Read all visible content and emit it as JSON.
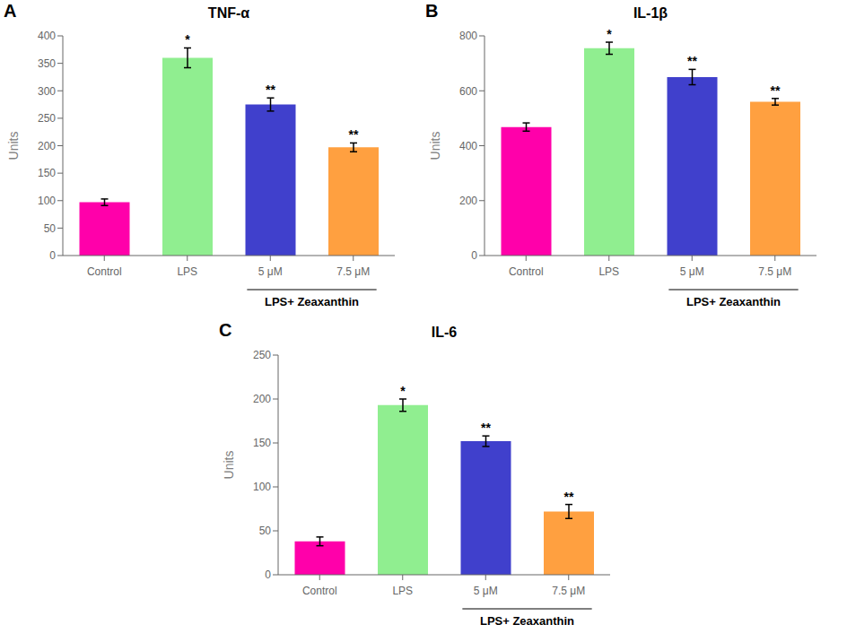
{
  "chart_data": [
    {
      "type": "bar",
      "label": "A",
      "title": "TNF-α",
      "categories": [
        "Control",
        "LPS",
        "5 μM",
        "7.5 μM"
      ],
      "values": [
        97,
        360,
        275,
        197
      ],
      "errors": [
        6,
        18,
        12,
        8
      ],
      "colors": [
        "#FF00AA",
        "#90EE90",
        "#4040CC",
        "#FFA040"
      ],
      "ylim": [
        0,
        400
      ],
      "yticks": [
        0,
        50,
        100,
        150,
        200,
        250,
        300,
        350,
        400
      ],
      "ylabel": "Units",
      "annotations": [
        null,
        "*",
        "**",
        "**"
      ],
      "bracket_label": "LPS+ Zeaxanthin"
    },
    {
      "type": "bar",
      "label": "B",
      "title": "IL-1β",
      "categories": [
        "Control",
        "LPS",
        "5 μM",
        "7.5 μM"
      ],
      "values": [
        468,
        755,
        650,
        560
      ],
      "errors": [
        15,
        22,
        28,
        12
      ],
      "colors": [
        "#FF00AA",
        "#90EE90",
        "#4040CC",
        "#FFA040"
      ],
      "ylim": [
        0,
        800
      ],
      "yticks": [
        0,
        200,
        400,
        600,
        800
      ],
      "ylabel": "Units",
      "annotations": [
        null,
        "*",
        "**",
        "**"
      ],
      "bracket_label": "LPS+ Zeaxanthin"
    },
    {
      "type": "bar",
      "label": "C",
      "title": "IL-6",
      "categories": [
        "Control",
        "LPS",
        "5 μM",
        "7.5 μM"
      ],
      "values": [
        38,
        193,
        152,
        72
      ],
      "errors": [
        5,
        7,
        6,
        8
      ],
      "colors": [
        "#FF00AA",
        "#90EE90",
        "#4040CC",
        "#FFA040"
      ],
      "ylim": [
        0,
        250
      ],
      "yticks": [
        0,
        50,
        100,
        150,
        200,
        250
      ],
      "ylabel": "Units",
      "annotations": [
        null,
        "*",
        "**",
        "**"
      ],
      "bracket_label": "LPS+ Zeaxanthin"
    }
  ]
}
